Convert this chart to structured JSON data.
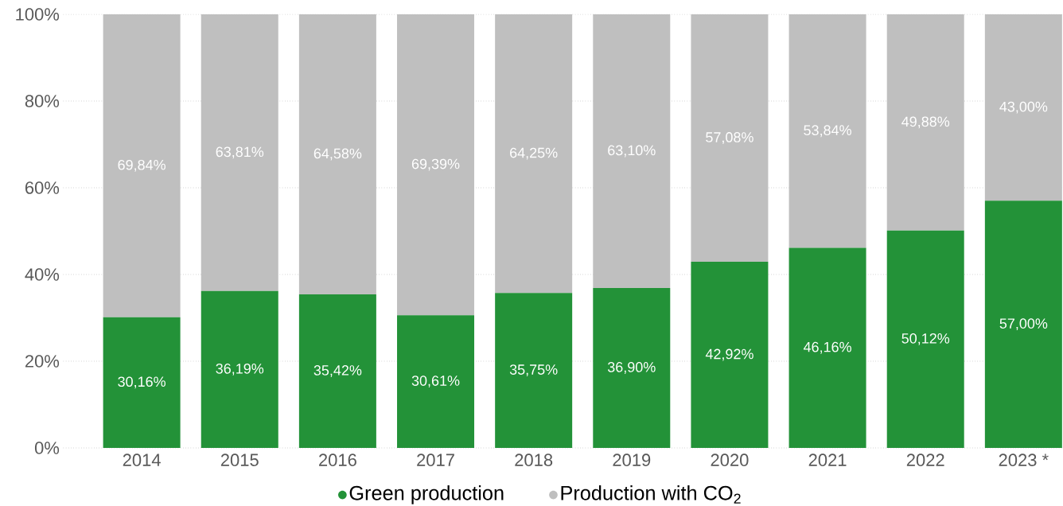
{
  "chart_data": {
    "type": "bar",
    "stacked": true,
    "categories": [
      "2014",
      "2015",
      "2016",
      "2017",
      "2018",
      "2019",
      "2020",
      "2021",
      "2022",
      "2023 *"
    ],
    "series": [
      {
        "name": "Green production",
        "color": "#239238",
        "values": [
          30.16,
          36.19,
          35.42,
          30.61,
          35.75,
          36.9,
          42.92,
          46.16,
          50.12,
          57.0
        ],
        "value_labels": [
          "30,16%",
          "36,19%",
          "35,42%",
          "30,61%",
          "35,75%",
          "36,90%",
          "42,92%",
          "46,16%",
          "50,12%",
          "57,00%"
        ]
      },
      {
        "name": "Production with CO$_{2}$",
        "color": "#bfbfbf",
        "values": [
          69.84,
          63.81,
          64.58,
          69.39,
          64.25,
          63.1,
          57.08,
          53.84,
          49.88,
          43.0
        ],
        "value_labels": [
          "69,84%",
          "63,81%",
          "64,58%",
          "69,39%",
          "64,25%",
          "63,10%",
          "57,08%",
          "53,84%",
          "49,88%",
          "43,00%"
        ]
      }
    ],
    "ylim": [
      0,
      100
    ],
    "yticks": [
      {
        "value": 0,
        "label": "0%"
      },
      {
        "value": 20,
        "label": "20%"
      },
      {
        "value": 40,
        "label": "40%"
      },
      {
        "value": 60,
        "label": "60%"
      },
      {
        "value": 80,
        "label": "80%"
      },
      {
        "value": 100,
        "label": "100%"
      }
    ],
    "grid": "y",
    "legend": "bottom"
  }
}
